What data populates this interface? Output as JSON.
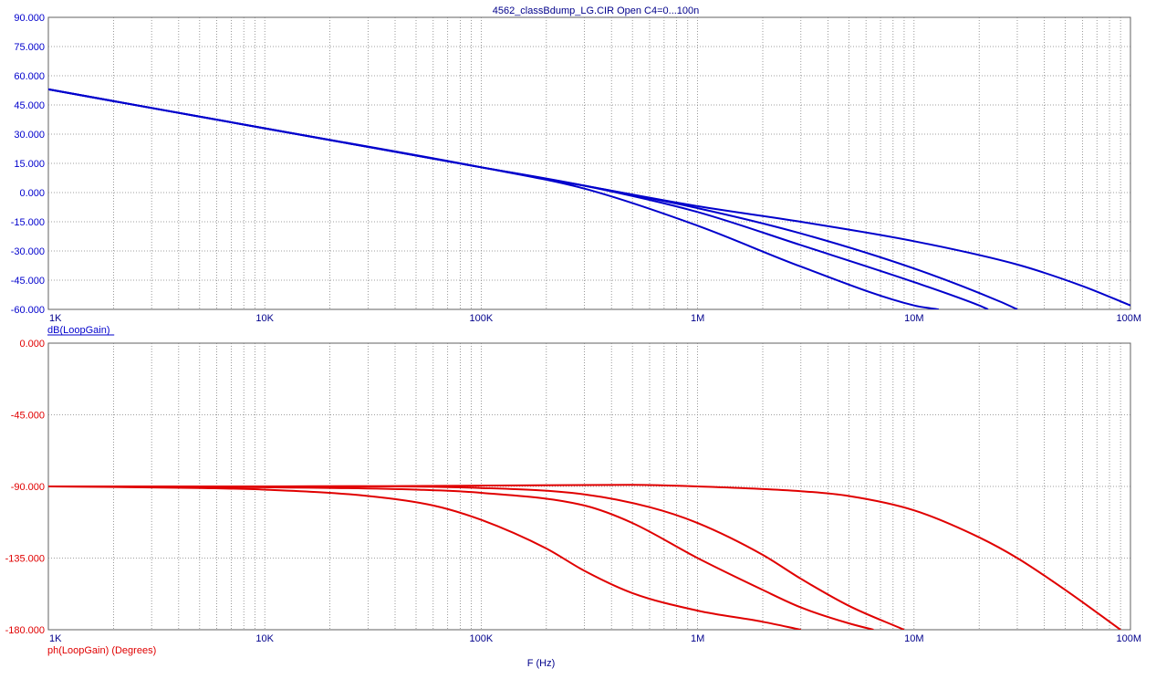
{
  "title": "4562_classBdump_LG.CIR Open C4=0...100n",
  "x_axis_label": "F (Hz)",
  "colors": {
    "magnitude": "#0000cc",
    "phase": "#e00000",
    "frame": "#606060",
    "grid": "#808080",
    "title": "#00008b",
    "xlabel": "#00008b"
  },
  "chart_data": [
    {
      "type": "line",
      "id": "magnitude",
      "ylabel": "dB(LoopGain)",
      "xscale": "log",
      "xlim": [
        1000,
        100000000
      ],
      "ylim": [
        -60,
        90
      ],
      "x_ticks": [
        1000,
        10000,
        100000,
        1000000,
        10000000,
        100000000
      ],
      "x_tick_labels": [
        "1K",
        "10K",
        "100K",
        "1M",
        "10M",
        "100M"
      ],
      "y_ticks": [
        90,
        75,
        60,
        45,
        30,
        15,
        0,
        -15,
        -30,
        -45,
        -60
      ],
      "y_tick_labels": [
        "90.000",
        "75.000",
        "60.000",
        "45.000",
        "30.000",
        "15.000",
        "0.000",
        "-15.000",
        "-30.000",
        "-45.000",
        "-60.000"
      ],
      "grid": true,
      "series": [
        {
          "x": [
            1000,
            10000,
            100000,
            300000,
            1000000,
            3000000,
            10000000,
            13000000
          ],
          "y": [
            53,
            33,
            13,
            2,
            -17,
            -38,
            -58,
            -60
          ]
        },
        {
          "x": [
            1000,
            10000,
            100000,
            300000,
            1000000,
            3000000,
            10000000,
            20000000,
            22000000
          ],
          "y": [
            53,
            33,
            13,
            3.5,
            -10,
            -27,
            -46,
            -58,
            -60
          ]
        },
        {
          "x": [
            1000,
            10000,
            100000,
            300000,
            1000000,
            3000000,
            10000000,
            25000000,
            30000000
          ],
          "y": [
            53,
            33,
            13,
            3.5,
            -8,
            -21,
            -39,
            -56,
            -60
          ]
        },
        {
          "x": [
            1000,
            10000,
            100000,
            300000,
            1000000,
            3000000,
            10000000,
            30000000,
            60000000,
            100000000
          ],
          "y": [
            53,
            33,
            13,
            3.5,
            -7,
            -15,
            -25,
            -37,
            -48,
            -58
          ]
        }
      ]
    },
    {
      "type": "line",
      "id": "phase",
      "ylabel": "ph(LoopGain) (Degrees)",
      "xscale": "log",
      "xlim": [
        1000,
        100000000
      ],
      "ylim": [
        -180,
        0
      ],
      "x_ticks": [
        1000,
        10000,
        100000,
        1000000,
        10000000,
        100000000
      ],
      "x_tick_labels": [
        "1K",
        "10K",
        "100K",
        "1M",
        "10M",
        "100M"
      ],
      "y_ticks": [
        0,
        -45,
        -90,
        -135,
        -180
      ],
      "y_tick_labels": [
        "0.000",
        "-45.000",
        "-90.000",
        "-135.000",
        "-180.000"
      ],
      "grid": true,
      "series": [
        {
          "x": [
            1000,
            5000,
            10000,
            30000,
            60000,
            100000,
            200000,
            300000,
            500000,
            1000000,
            2000000,
            3000000
          ],
          "y": [
            -90,
            -91,
            -92,
            -96,
            -102,
            -111,
            -129,
            -143,
            -157,
            -168,
            -175,
            -180
          ]
        },
        {
          "x": [
            1000,
            10000,
            50000,
            100000,
            300000,
            500000,
            1000000,
            2000000,
            3000000,
            5000000,
            6500000
          ],
          "y": [
            -90,
            -90.5,
            -92,
            -94,
            -102,
            -113,
            -135,
            -155,
            -166,
            -176,
            -180
          ]
        },
        {
          "x": [
            1000,
            10000,
            100000,
            300000,
            600000,
            1000000,
            2000000,
            3000000,
            5000000,
            9000000
          ],
          "y": [
            -90,
            -90,
            -91,
            -95,
            -103,
            -113,
            -133,
            -148,
            -165,
            -180
          ]
        },
        {
          "x": [
            1000,
            10000,
            100000,
            500000,
            1000000,
            3000000,
            5000000,
            10000000,
            20000000,
            30000000,
            50000000,
            90000000
          ],
          "y": [
            -90,
            -90,
            -89.5,
            -89,
            -90,
            -93,
            -96,
            -105,
            -122,
            -135,
            -155,
            -180
          ]
        }
      ]
    }
  ]
}
